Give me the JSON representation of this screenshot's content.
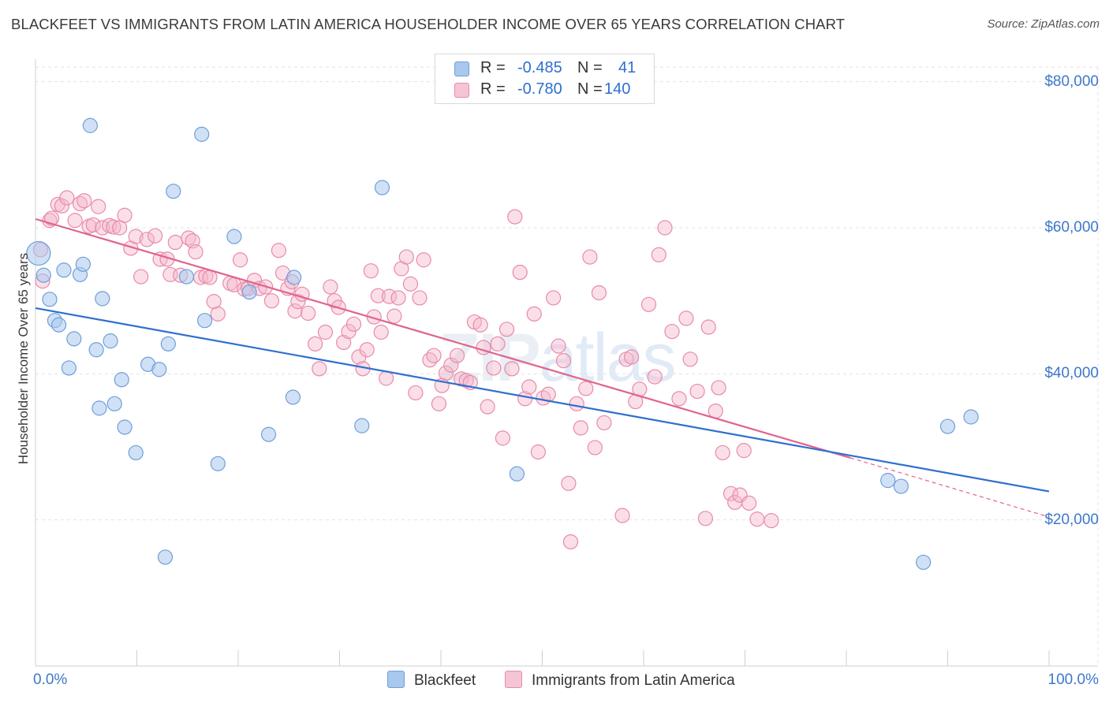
{
  "title": "BLACKFEET VS IMMIGRANTS FROM LATIN AMERICA HOUSEHOLDER INCOME OVER 65 YEARS CORRELATION CHART",
  "source": "Source: ZipAtlas.com",
  "watermark": {
    "zip": "ZIP",
    "atlas": "atlas"
  },
  "legend": {
    "r_label": "R =",
    "n_label": "N =",
    "rows": [
      {
        "r": "-0.485",
        "n": "41"
      },
      {
        "r": "-0.780",
        "n": "140"
      }
    ]
  },
  "bottom_legend": [
    "Blackfeet",
    "Immigrants from Latin America"
  ],
  "colors": {
    "blue_fill": "#a9c8ee",
    "blue_stroke": "#6f9fd8",
    "blue_line": "#2f6fcf",
    "pink_fill": "#f5b9cd",
    "pink_stroke": "#e98aaa",
    "pink_line": "#e0648e",
    "tick_text": "#3d77cc",
    "grid": "#e3e3e3"
  },
  "chart_data": {
    "type": "scatter",
    "title": "BLACKFEET VS IMMIGRANTS FROM LATIN AMERICA HOUSEHOLDER INCOME OVER 65 YEARS CORRELATION CHART",
    "xlabel": "",
    "ylabel": "Householder Income Over 65 years",
    "xlim": [
      0,
      100
    ],
    "ylim": [
      0,
      82000
    ],
    "x_tick_labels": [
      "0.0%",
      "100.0%"
    ],
    "y_ticks": [
      20000,
      40000,
      60000,
      80000
    ],
    "y_tick_labels": [
      "$20,000",
      "$40,000",
      "$60,000",
      "$80,000"
    ],
    "grid": true,
    "legend_position": "top-center",
    "series": [
      {
        "name": "Blackfeet",
        "r": -0.485,
        "n": 41,
        "trend": {
          "x": [
            0,
            100
          ],
          "y": [
            49000,
            23900
          ]
        },
        "points": [
          [
            0.3,
            56500
          ],
          [
            0.8,
            53500
          ],
          [
            1.4,
            50200
          ],
          [
            1.9,
            47300
          ],
          [
            2.3,
            46700
          ],
          [
            2.8,
            54200
          ],
          [
            3.3,
            40800
          ],
          [
            3.8,
            44800
          ],
          [
            4.4,
            53600
          ],
          [
            4.7,
            55000
          ],
          [
            5.4,
            74000
          ],
          [
            6.0,
            43300
          ],
          [
            6.3,
            35300
          ],
          [
            6.6,
            50300
          ],
          [
            7.4,
            44500
          ],
          [
            7.8,
            35900
          ],
          [
            8.5,
            39200
          ],
          [
            8.8,
            32700
          ],
          [
            9.9,
            29200
          ],
          [
            11.1,
            41300
          ],
          [
            12.2,
            40600
          ],
          [
            13.1,
            44100
          ],
          [
            13.6,
            65000
          ],
          [
            14.9,
            53300
          ],
          [
            12.8,
            14900
          ],
          [
            16.4,
            72800
          ],
          [
            16.7,
            47300
          ],
          [
            18.0,
            27700
          ],
          [
            19.6,
            58800
          ],
          [
            21.1,
            51200
          ],
          [
            23.0,
            31700
          ],
          [
            25.4,
            36800
          ],
          [
            25.5,
            53200
          ],
          [
            32.2,
            32900
          ],
          [
            34.2,
            65500
          ],
          [
            47.5,
            26300
          ],
          [
            84.1,
            25400
          ],
          [
            85.4,
            24600
          ],
          [
            87.6,
            14200
          ],
          [
            90.0,
            32800
          ],
          [
            92.3,
            34100
          ]
        ]
      },
      {
        "name": "Immigrants from Latin America",
        "r": -0.78,
        "n": 140,
        "trend": {
          "x": [
            0,
            80.4
          ],
          "y": [
            61200,
            28500
          ]
        },
        "trend_dashed": {
          "x": [
            80.4,
            100
          ],
          "y": [
            28500,
            20400
          ]
        },
        "points": [
          [
            0.5,
            57000
          ],
          [
            0.7,
            52700
          ],
          [
            1.4,
            61000
          ],
          [
            1.6,
            61300
          ],
          [
            2.2,
            63200
          ],
          [
            2.6,
            63000
          ],
          [
            3.1,
            64100
          ],
          [
            3.9,
            61000
          ],
          [
            4.4,
            63300
          ],
          [
            4.8,
            63700
          ],
          [
            5.3,
            60200
          ],
          [
            5.7,
            60400
          ],
          [
            6.2,
            62900
          ],
          [
            6.6,
            60000
          ],
          [
            7.3,
            60300
          ],
          [
            7.7,
            60100
          ],
          [
            8.3,
            60000
          ],
          [
            8.8,
            61700
          ],
          [
            9.4,
            57200
          ],
          [
            9.9,
            58800
          ],
          [
            10.4,
            53300
          ],
          [
            11.0,
            58400
          ],
          [
            11.8,
            58900
          ],
          [
            12.3,
            55700
          ],
          [
            13.0,
            55700
          ],
          [
            13.3,
            53600
          ],
          [
            13.8,
            58000
          ],
          [
            14.3,
            53500
          ],
          [
            15.1,
            58600
          ],
          [
            15.5,
            58200
          ],
          [
            15.8,
            56700
          ],
          [
            16.3,
            53200
          ],
          [
            16.8,
            53400
          ],
          [
            17.2,
            53200
          ],
          [
            17.6,
            49900
          ],
          [
            18.0,
            48200
          ],
          [
            19.2,
            52400
          ],
          [
            19.6,
            52200
          ],
          [
            20.2,
            55600
          ],
          [
            20.6,
            51600
          ],
          [
            21.0,
            51700
          ],
          [
            21.6,
            52800
          ],
          [
            22.1,
            51700
          ],
          [
            22.7,
            51900
          ],
          [
            23.3,
            50000
          ],
          [
            24.0,
            56900
          ],
          [
            24.4,
            53800
          ],
          [
            24.9,
            51700
          ],
          [
            25.3,
            52600
          ],
          [
            25.6,
            48600
          ],
          [
            25.9,
            49900
          ],
          [
            26.3,
            50900
          ],
          [
            26.9,
            48300
          ],
          [
            27.6,
            44100
          ],
          [
            28.0,
            40700
          ],
          [
            28.6,
            45700
          ],
          [
            29.1,
            51900
          ],
          [
            29.5,
            50000
          ],
          [
            29.9,
            49100
          ],
          [
            30.4,
            44300
          ],
          [
            30.9,
            45800
          ],
          [
            31.4,
            46800
          ],
          [
            31.9,
            42300
          ],
          [
            32.3,
            40700
          ],
          [
            32.7,
            43300
          ],
          [
            33.1,
            54100
          ],
          [
            33.4,
            47800
          ],
          [
            33.8,
            50700
          ],
          [
            34.1,
            45700
          ],
          [
            34.6,
            39400
          ],
          [
            34.9,
            50600
          ],
          [
            35.4,
            47900
          ],
          [
            35.8,
            50400
          ],
          [
            36.1,
            54400
          ],
          [
            36.6,
            56000
          ],
          [
            37.0,
            52300
          ],
          [
            37.5,
            37400
          ],
          [
            37.9,
            50400
          ],
          [
            38.3,
            55600
          ],
          [
            38.9,
            41900
          ],
          [
            39.3,
            42500
          ],
          [
            39.8,
            35900
          ],
          [
            40.1,
            38400
          ],
          [
            40.5,
            40100
          ],
          [
            41.0,
            41200
          ],
          [
            41.6,
            42500
          ],
          [
            42.0,
            39300
          ],
          [
            42.5,
            39100
          ],
          [
            42.9,
            38800
          ],
          [
            43.3,
            47100
          ],
          [
            43.9,
            46700
          ],
          [
            44.2,
            43600
          ],
          [
            44.6,
            35500
          ],
          [
            45.2,
            40800
          ],
          [
            45.6,
            44100
          ],
          [
            46.1,
            31200
          ],
          [
            46.5,
            46100
          ],
          [
            47.0,
            40700
          ],
          [
            47.3,
            61500
          ],
          [
            47.8,
            53900
          ],
          [
            48.3,
            36600
          ],
          [
            48.7,
            38200
          ],
          [
            49.2,
            48200
          ],
          [
            49.6,
            29300
          ],
          [
            50.1,
            36700
          ],
          [
            50.6,
            37200
          ],
          [
            51.1,
            50400
          ],
          [
            51.6,
            43800
          ],
          [
            52.1,
            41800
          ],
          [
            52.6,
            25000
          ],
          [
            52.8,
            17000
          ],
          [
            53.4,
            35900
          ],
          [
            53.8,
            32600
          ],
          [
            54.3,
            38000
          ],
          [
            54.7,
            56000
          ],
          [
            55.2,
            29900
          ],
          [
            55.6,
            51100
          ],
          [
            56.1,
            33300
          ],
          [
            57.9,
            20600
          ],
          [
            58.3,
            42000
          ],
          [
            58.8,
            42300
          ],
          [
            59.2,
            36200
          ],
          [
            59.6,
            37900
          ],
          [
            60.5,
            49500
          ],
          [
            61.1,
            39600
          ],
          [
            61.5,
            56300
          ],
          [
            62.1,
            60000
          ],
          [
            62.8,
            45800
          ],
          [
            63.5,
            36600
          ],
          [
            64.2,
            47600
          ],
          [
            64.6,
            42000
          ],
          [
            65.3,
            37600
          ],
          [
            66.1,
            20200
          ],
          [
            66.4,
            46400
          ],
          [
            67.1,
            34900
          ],
          [
            67.4,
            38100
          ],
          [
            67.8,
            29200
          ],
          [
            68.6,
            23600
          ],
          [
            69.0,
            22400
          ],
          [
            69.5,
            23400
          ],
          [
            69.9,
            29500
          ],
          [
            70.4,
            22300
          ],
          [
            71.2,
            20100
          ],
          [
            72.6,
            19900
          ]
        ]
      }
    ]
  }
}
